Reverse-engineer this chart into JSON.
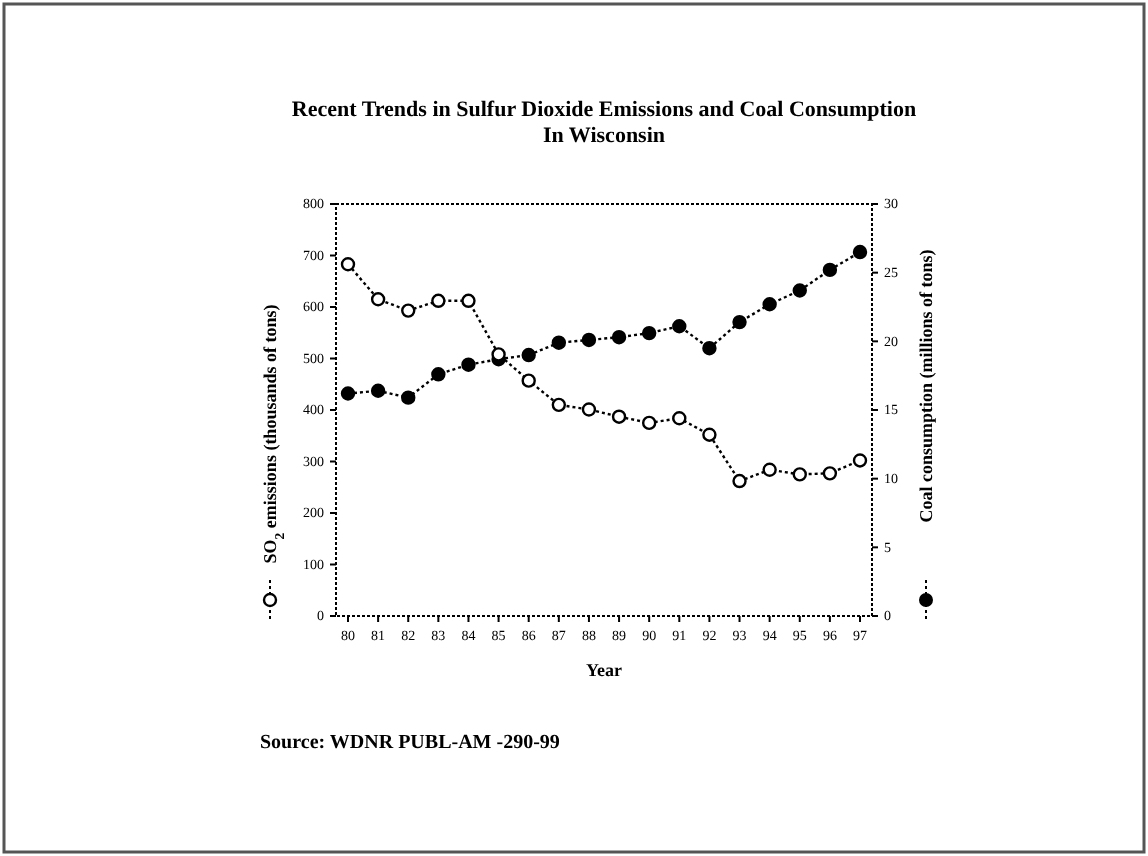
{
  "chart_data": {
    "type": "line",
    "title": "Recent Trends in Sulfur Dioxide Emissions and Coal Consumption\nIn Wisconsin",
    "xlabel": "Year",
    "ylabel": "SO$_{2}$ emissions (thousands of tons)",
    "y2label": "Coal consumption (millions of tons)",
    "categories": [
      "80",
      "81",
      "82",
      "83",
      "84",
      "85",
      "86",
      "87",
      "88",
      "89",
      "90",
      "91",
      "92",
      "93",
      "94",
      "95",
      "96",
      "97"
    ],
    "series": [
      {
        "color": "#000000",
        "axis": "y",
        "values": [
          683,
          615,
          593,
          612,
          612,
          508,
          457,
          410,
          401,
          387,
          375,
          384,
          352,
          262,
          284,
          275,
          277,
          302
        ]
      },
      {
        "color": "#000000",
        "axis": "y2",
        "values": [
          16.2,
          16.4,
          15.9,
          17.6,
          18.3,
          18.7,
          19.0,
          19.9,
          20.1,
          20.3,
          20.6,
          21.1,
          19.5,
          21.4,
          22.7,
          23.7,
          25.2,
          26.5
        ]
      }
    ],
    "ylim": [
      0,
      800
    ],
    "yticks": [
      0,
      100,
      200,
      300,
      400,
      500,
      600,
      700,
      800
    ],
    "y2lim": [
      0,
      30
    ],
    "y2ticks": [
      0,
      5,
      10,
      15,
      20,
      25,
      30
    ],
    "marker": "circle",
    "line_style": "dotted",
    "grid": false,
    "annotations": [
      "Source: WDNR PUBL-AM -290-99"
    ]
  }
}
